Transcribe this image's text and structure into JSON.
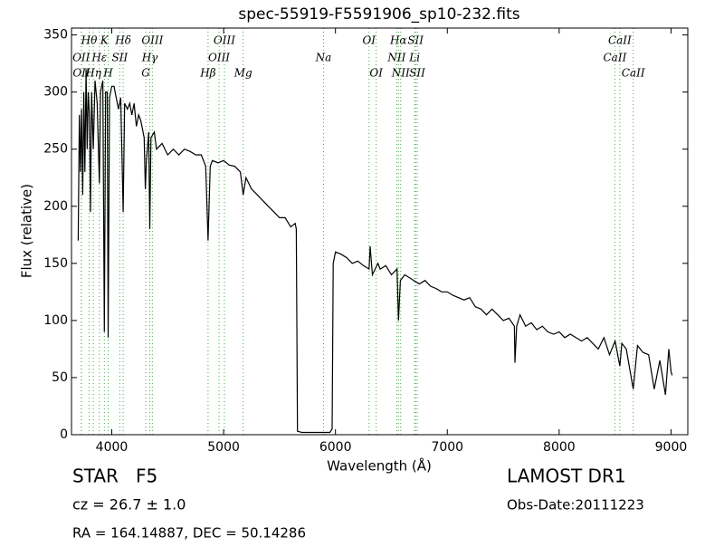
{
  "chart_data": {
    "type": "line",
    "title": "spec-55919-F5591906_sp10-232.fits",
    "xlabel": "Wavelength (Å)",
    "ylabel": "Flux (relative)",
    "xlim": [
      3640,
      9150
    ],
    "ylim": [
      0,
      356
    ],
    "xticks": [
      4000,
      5000,
      6000,
      7000,
      8000,
      9000
    ],
    "yticks": [
      0,
      50,
      100,
      150,
      200,
      250,
      300,
      350
    ],
    "line_color": "#000000",
    "marker_color": "#44aa44",
    "x": [
      3700,
      3710,
      3720,
      3730,
      3740,
      3750,
      3760,
      3770,
      3780,
      3790,
      3800,
      3810,
      3820,
      3835,
      3850,
      3870,
      3889,
      3900,
      3920,
      3934,
      3945,
      3960,
      3968,
      3980,
      4000,
      4020,
      4040,
      4060,
      4080,
      4102,
      4115,
      4140,
      4160,
      4180,
      4200,
      4220,
      4240,
      4260,
      4290,
      4300,
      4310,
      4330,
      4340,
      4350,
      4380,
      4400,
      4450,
      4500,
      4550,
      4600,
      4650,
      4700,
      4750,
      4800,
      4840,
      4861,
      4880,
      4900,
      4950,
      5000,
      5050,
      5100,
      5150,
      5175,
      5200,
      5250,
      5300,
      5350,
      5400,
      5450,
      5500,
      5550,
      5600,
      5640,
      5650,
      5660,
      5700,
      5800,
      5900,
      5950,
      5970,
      5980,
      6000,
      6050,
      6100,
      6150,
      6200,
      6250,
      6300,
      6310,
      6330,
      6380,
      6400,
      6450,
      6500,
      6550,
      6563,
      6580,
      6620,
      6700,
      6750,
      6800,
      6850,
      6900,
      6950,
      7000,
      7050,
      7100,
      7150,
      7200,
      7250,
      7300,
      7350,
      7400,
      7450,
      7500,
      7550,
      7600,
      7605,
      7620,
      7650,
      7700,
      7750,
      7800,
      7850,
      7900,
      7950,
      8000,
      8050,
      8100,
      8150,
      8200,
      8250,
      8300,
      8350,
      8400,
      8450,
      8500,
      8542,
      8560,
      8600,
      8662,
      8700,
      8750,
      8800,
      8850,
      8900,
      8950,
      8980,
      9000,
      9010
    ],
    "values": [
      170,
      280,
      230,
      285,
      210,
      300,
      230,
      320,
      250,
      300,
      280,
      195,
      300,
      250,
      310,
      290,
      220,
      300,
      310,
      90,
      300,
      300,
      85,
      295,
      305,
      305,
      295,
      285,
      295,
      195,
      290,
      285,
      290,
      280,
      290,
      270,
      280,
      275,
      260,
      215,
      240,
      265,
      180,
      260,
      265,
      250,
      255,
      245,
      250,
      245,
      250,
      248,
      245,
      245,
      235,
      170,
      235,
      240,
      238,
      240,
      236,
      235,
      230,
      210,
      225,
      215,
      210,
      205,
      200,
      195,
      190,
      190,
      182,
      185,
      180,
      3,
      2,
      2,
      2,
      2,
      5,
      150,
      160,
      158,
      155,
      150,
      152,
      148,
      145,
      165,
      140,
      150,
      145,
      148,
      140,
      145,
      100,
      135,
      140,
      135,
      132,
      135,
      130,
      128,
      125,
      125,
      122,
      120,
      118,
      120,
      112,
      110,
      105,
      110,
      105,
      100,
      102,
      95,
      63,
      95,
      105,
      95,
      98,
      92,
      95,
      90,
      88,
      90,
      85,
      88,
      85,
      82,
      85,
      80,
      75,
      85,
      70,
      82,
      60,
      80,
      75,
      40,
      78,
      72,
      70,
      40,
      65,
      35,
      75,
      55,
      52
    ],
    "spectral_lines": [
      [
        {
          "label": "Hθ",
          "x": 3798
        },
        {
          "label": "K",
          "x": 3934
        },
        {
          "label": "Hδ",
          "x": 4102
        },
        {
          "label": "OIII",
          "x": 4363
        },
        {
          "label": "OIII",
          "x": 5007
        },
        {
          "label": "OI",
          "x": 6300
        },
        {
          "label": "Hα",
          "x": 6563
        },
        {
          "label": "SII",
          "x": 6716
        },
        {
          "label": "CaII",
          "x": 8542
        }
      ],
      [
        {
          "label": "OII",
          "x": 3727
        },
        {
          "label": "Hε",
          "x": 3889
        },
        {
          "label": "SII",
          "x": 4072
        },
        {
          "label": "Hγ",
          "x": 4340
        },
        {
          "label": "OIII",
          "x": 4959
        },
        {
          "label": "Na",
          "x": 5893
        },
        {
          "label": "NII",
          "x": 6548
        },
        {
          "label": "Li",
          "x": 6708
        },
        {
          "label": "CaII",
          "x": 8498
        }
      ],
      [
        {
          "label": "OII",
          "x": 3729
        },
        {
          "label": "Hη",
          "x": 3835
        },
        {
          "label": "H",
          "x": 3968
        },
        {
          "label": "G",
          "x": 4304
        },
        {
          "label": "Hβ",
          "x": 4861
        },
        {
          "label": "Mg",
          "x": 5175
        },
        {
          "label": "OI",
          "x": 6364
        },
        {
          "label": "NII",
          "x": 6583
        },
        {
          "label": "SII",
          "x": 6731
        },
        {
          "label": "CaII",
          "x": 8662
        }
      ]
    ],
    "annotations_left": [
      "STAR   F5",
      "cz = 26.7 ± 1.0",
      "RA = 164.14887, DEC = 50.14286"
    ],
    "annotations_right": [
      "LAMOST DR1",
      "Obs-Date:20111223"
    ]
  }
}
